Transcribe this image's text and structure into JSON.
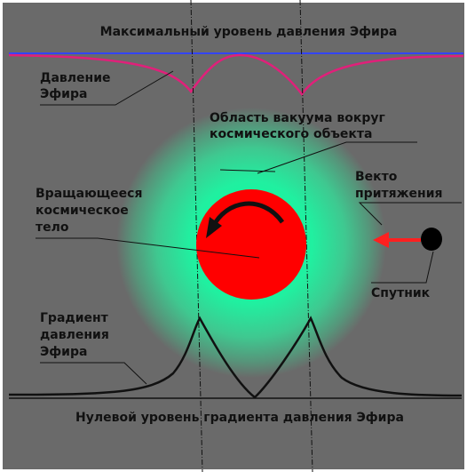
{
  "diagram": {
    "top_label": "Максимальный уровень давления Эфира",
    "pressure_label": [
      "Давление",
      "Эфира"
    ],
    "vacuum_label": [
      "Область вакуума вокруг",
      "космического объекта"
    ],
    "body_label": [
      "Вращающееся",
      "космическое",
      "тело"
    ],
    "vector_label": [
      "Векто",
      "притяжения"
    ],
    "satellite_label": "Спутник",
    "gradient_label": [
      "Градиент",
      "давления",
      "Эфира"
    ],
    "bottom_label": "Нулевой уровень градиента давления Эфира"
  }
}
